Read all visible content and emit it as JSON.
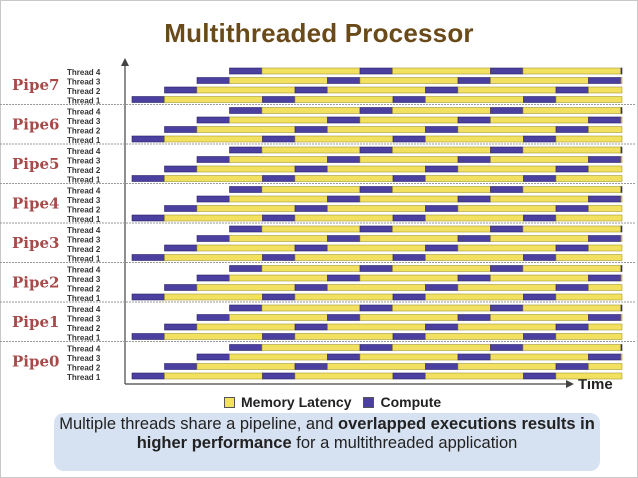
{
  "title": "Multithreaded Processor",
  "pipes": [
    "Pipe7",
    "Pipe6",
    "Pipe5",
    "Pipe4",
    "Pipe3",
    "Pipe2",
    "Pipe1",
    "Pipe0"
  ],
  "threads": [
    "Thread 4",
    "Thread 3",
    "Thread 2",
    "Thread 1"
  ],
  "time_label": "Time",
  "legend": {
    "memory_latency": "Memory Latency",
    "compute": "Compute"
  },
  "colors": {
    "memory_latency": "#f2e060",
    "compute": "#4b3fa0",
    "pipe_label": "#a64a4a",
    "title": "#6b4a1a",
    "caption_bg": "#d6e2f1"
  },
  "caption": {
    "part1": "Multiple threads share a pipeline, and ",
    "bold1": "overlapped executions results in higher performance",
    "part2": " for a multithreaded application"
  }
}
